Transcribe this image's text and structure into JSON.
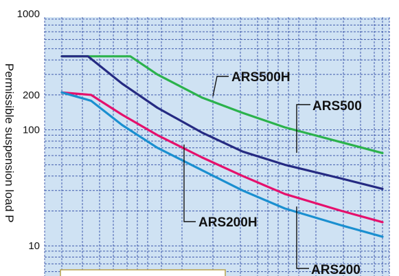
{
  "chart_data": {
    "type": "line",
    "scale": {
      "y": "log",
      "x": "log"
    },
    "ylabel": "Permissible suspension load P",
    "ylim": [
      5.5,
      1000
    ],
    "y_ticks": [
      {
        "value": 1000,
        "label": "1000"
      },
      {
        "value": 200,
        "label": "200"
      },
      {
        "value": 100,
        "label": "100"
      },
      {
        "value": 10,
        "label": "10"
      }
    ],
    "grid": true,
    "colors": {
      "plot_bg": "#cfe2f3",
      "grid": "#1d3a9c",
      "ARS500H": "#2bb24c",
      "ARS500": "#252a82",
      "ARS200H": "#e5106c",
      "ARS200": "#1a8fd0"
    },
    "series": [
      {
        "name": "ARS500H",
        "points": [
          [
            1,
            430
          ],
          [
            1.8,
            430
          ],
          [
            2.2,
            430
          ],
          [
            3,
            300
          ],
          [
            5,
            190
          ],
          [
            8,
            140
          ],
          [
            13,
            105
          ],
          [
            25,
            78
          ],
          [
            40,
            63
          ]
        ]
      },
      {
        "name": "ARS500",
        "points": [
          [
            1,
            430
          ],
          [
            1.35,
            430
          ],
          [
            2,
            250
          ],
          [
            3,
            155
          ],
          [
            5,
            95
          ],
          [
            8,
            65
          ],
          [
            13,
            50
          ],
          [
            25,
            38
          ],
          [
            40,
            31
          ]
        ]
      },
      {
        "name": "ARS200H",
        "points": [
          [
            1,
            210
          ],
          [
            1.4,
            200
          ],
          [
            2,
            135
          ],
          [
            3,
            90
          ],
          [
            5,
            58
          ],
          [
            8,
            40
          ],
          [
            13,
            28
          ],
          [
            25,
            20
          ],
          [
            40,
            16
          ]
        ]
      },
      {
        "name": "ARS200",
        "points": [
          [
            1,
            210
          ],
          [
            1.4,
            178
          ],
          [
            2,
            110
          ],
          [
            3,
            70
          ],
          [
            5,
            45
          ],
          [
            8,
            30
          ],
          [
            13,
            21
          ],
          [
            25,
            15
          ],
          [
            40,
            12
          ]
        ]
      }
    ]
  }
}
